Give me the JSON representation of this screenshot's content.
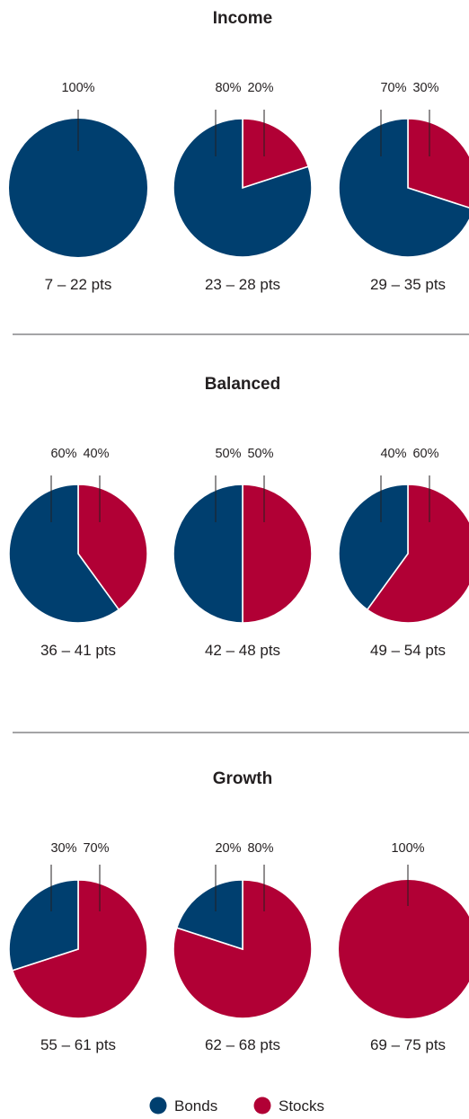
{
  "chart_data": {
    "type": "pie",
    "colors": {
      "bonds": "#003f6f",
      "stocks": "#b10035"
    },
    "legend": {
      "placement": "bottom",
      "entries": [
        {
          "key": "bonds",
          "label": "Bonds"
        },
        {
          "key": "stocks",
          "label": "Stocks"
        }
      ]
    },
    "sections": [
      {
        "title": "Income",
        "charts": [
          {
            "range_label": "7 – 22 pts",
            "bonds": 100,
            "stocks": 0,
            "bonds_label": "100%",
            "stocks_label": ""
          },
          {
            "range_label": "23 – 28 pts",
            "bonds": 80,
            "stocks": 20,
            "bonds_label": "80%",
            "stocks_label": "20%"
          },
          {
            "range_label": "29 – 35 pts",
            "bonds": 70,
            "stocks": 30,
            "bonds_label": "70%",
            "stocks_label": "30%"
          }
        ]
      },
      {
        "title": "Balanced",
        "charts": [
          {
            "range_label": "36 – 41 pts",
            "bonds": 60,
            "stocks": 40,
            "bonds_label": "60%",
            "stocks_label": "40%"
          },
          {
            "range_label": "42 – 48 pts",
            "bonds": 50,
            "stocks": 50,
            "bonds_label": "50%",
            "stocks_label": "50%"
          },
          {
            "range_label": "49 – 54 pts",
            "bonds": 40,
            "stocks": 60,
            "bonds_label": "40%",
            "stocks_label": "60%"
          }
        ]
      },
      {
        "title": "Growth",
        "charts": [
          {
            "range_label": "55 – 61 pts",
            "bonds": 30,
            "stocks": 70,
            "bonds_label": "30%",
            "stocks_label": "70%"
          },
          {
            "range_label": "62 – 68 pts",
            "bonds": 20,
            "stocks": 80,
            "bonds_label": "20%",
            "stocks_label": "80%"
          },
          {
            "range_label": "69 – 75 pts",
            "bonds": 0,
            "stocks": 100,
            "bonds_label": "",
            "stocks_label": "100%"
          }
        ]
      }
    ]
  }
}
